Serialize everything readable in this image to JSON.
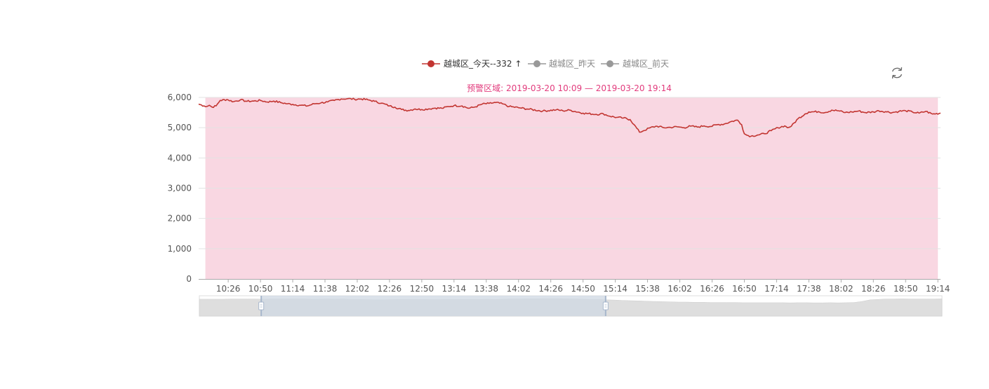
{
  "colors": {
    "today": "#c23531",
    "inactive": "#999999",
    "mark_area": "#f9d7e2",
    "mark_area_label": "#e23c7d",
    "grid": "#e3e3e3",
    "axis": "#aaaaaa",
    "zoom_selected": "#cfd8e3",
    "zoom_handle": "#a7b7cc",
    "zoom_shadow": "#dedede"
  },
  "toolbox": {
    "restore_icon": "refresh-icon"
  },
  "chart_data": {
    "type": "line",
    "legend": [
      {
        "name": "越城区_今天",
        "display": "越城区_今天--332 ↑",
        "active": true
      },
      {
        "name": "越城区_昨天",
        "display": "越城区_昨天",
        "active": false
      },
      {
        "name": "越城区_前天",
        "display": "越城区_前天",
        "active": false
      }
    ],
    "legend_position": "top-center",
    "mark_area": {
      "label": "预警区域:  2019-03-20 10:09  —  2019-03-20 19:14",
      "from": "10:09",
      "to": "19:14"
    },
    "x_ticks": [
      "10:26",
      "10:50",
      "11:14",
      "11:38",
      "12:02",
      "12:26",
      "12:50",
      "13:14",
      "13:38",
      "14:02",
      "14:26",
      "14:50",
      "15:14",
      "15:38",
      "16:02",
      "16:26",
      "16:50",
      "17:14",
      "17:38",
      "18:02",
      "18:26",
      "18:50",
      "19:14"
    ],
    "x_range": [
      "10:04",
      "19:16"
    ],
    "y_ticks": [
      "0",
      "1,000",
      "2,000",
      "3,000",
      "4,000",
      "5,000",
      "6,000"
    ],
    "ylim": [
      0,
      6000
    ],
    "grid": true,
    "series": [
      {
        "name": "越城区_今天",
        "x": [
          "10:04",
          "10:08",
          "10:10",
          "10:12",
          "10:14",
          "10:17",
          "10:20",
          "10:25",
          "10:30",
          "10:35",
          "10:40",
          "10:45",
          "10:50",
          "10:55",
          "11:00",
          "11:05",
          "11:10",
          "11:14",
          "11:20",
          "11:25",
          "11:30",
          "11:35",
          "11:40",
          "11:45",
          "11:50",
          "11:55",
          "12:00",
          "12:05",
          "12:10",
          "12:15",
          "12:20",
          "12:26",
          "12:30",
          "12:35",
          "12:40",
          "12:45",
          "12:50",
          "12:55",
          "13:00",
          "13:05",
          "13:10",
          "13:14",
          "13:20",
          "13:25",
          "13:30",
          "13:35",
          "13:40",
          "13:45",
          "13:50",
          "13:55",
          "14:02",
          "14:10",
          "14:20",
          "14:30",
          "14:35",
          "14:40",
          "14:50",
          "15:00",
          "15:05",
          "15:10",
          "15:15",
          "15:20",
          "15:25",
          "15:28",
          "15:32",
          "15:35",
          "15:40",
          "15:45",
          "15:50",
          "15:55",
          "16:00",
          "16:05",
          "16:10",
          "16:15",
          "16:20",
          "16:25",
          "16:30",
          "16:35",
          "16:40",
          "16:45",
          "16:48",
          "16:50",
          "16:52",
          "16:55",
          "17:00",
          "17:05",
          "17:10",
          "17:15",
          "17:20",
          "17:22",
          "17:25",
          "17:30",
          "17:35",
          "17:38",
          "17:45",
          "17:50",
          "17:55",
          "18:00",
          "18:05",
          "18:10",
          "18:15",
          "18:20",
          "18:26",
          "18:30",
          "18:35",
          "18:40",
          "18:45",
          "18:50",
          "18:55",
          "19:00",
          "19:05",
          "19:10",
          "19:16"
        ],
        "values": [
          5780,
          5720,
          5700,
          5740,
          5680,
          5720,
          5900,
          5930,
          5860,
          5920,
          5870,
          5880,
          5900,
          5850,
          5880,
          5830,
          5790,
          5770,
          5740,
          5720,
          5790,
          5820,
          5850,
          5900,
          5950,
          5960,
          5940,
          5950,
          5920,
          5870,
          5810,
          5720,
          5680,
          5600,
          5570,
          5620,
          5600,
          5620,
          5650,
          5640,
          5700,
          5730,
          5720,
          5640,
          5690,
          5780,
          5800,
          5830,
          5790,
          5700,
          5660,
          5610,
          5550,
          5590,
          5560,
          5580,
          5480,
          5440,
          5460,
          5380,
          5340,
          5320,
          5270,
          5100,
          4850,
          4900,
          5000,
          5050,
          5000,
          5010,
          5030,
          5000,
          5050,
          5020,
          5060,
          5040,
          5100,
          5120,
          5200,
          5250,
          5100,
          4800,
          4750,
          4720,
          4760,
          4800,
          4900,
          5000,
          5060,
          5000,
          5050,
          5300,
          5450,
          5520,
          5530,
          5500,
          5580,
          5560,
          5500,
          5520,
          5550,
          5500,
          5520,
          5560,
          5530,
          5500,
          5540,
          5560,
          5520,
          5480,
          5540,
          5450,
          5480
        ]
      }
    ],
    "data_zoom": {
      "start": "10:50",
      "end": "15:06",
      "preview": [
        0.83,
        0.83,
        0.83,
        0.83,
        0.84,
        0.84,
        0.84,
        0.84,
        0.83,
        0.84,
        0.84,
        0.84,
        0.84,
        0.84,
        0.83,
        0.83,
        0.84,
        0.83,
        0.84,
        0.82,
        0.82,
        0.81,
        0.8,
        0.8,
        0.81,
        0.82,
        0.82,
        0.82,
        0.82,
        0.81,
        0.81,
        0.82,
        0.82,
        0.82,
        0.82,
        0.82,
        0.83,
        0.82,
        0.83,
        0.84,
        0.84,
        0.85,
        0.85,
        0.86,
        0.86,
        0.86,
        0.85,
        0.84,
        0.83,
        0.82,
        0.82,
        0.8,
        0.79,
        0.77,
        0.76,
        0.75,
        0.73,
        0.72,
        0.71,
        0.7,
        0.69,
        0.69,
        0.68,
        0.68,
        0.67,
        0.67,
        0.67,
        0.67,
        0.66,
        0.66,
        0.66,
        0.66,
        0.66,
        0.66,
        0.65,
        0.66,
        0.66,
        0.65,
        0.65,
        0.66,
        0.65,
        0.66,
        0.67,
        0.72,
        0.8,
        0.82,
        0.84,
        0.84,
        0.85,
        0.84,
        0.84,
        0.84,
        0.84,
        0.85
      ]
    }
  }
}
